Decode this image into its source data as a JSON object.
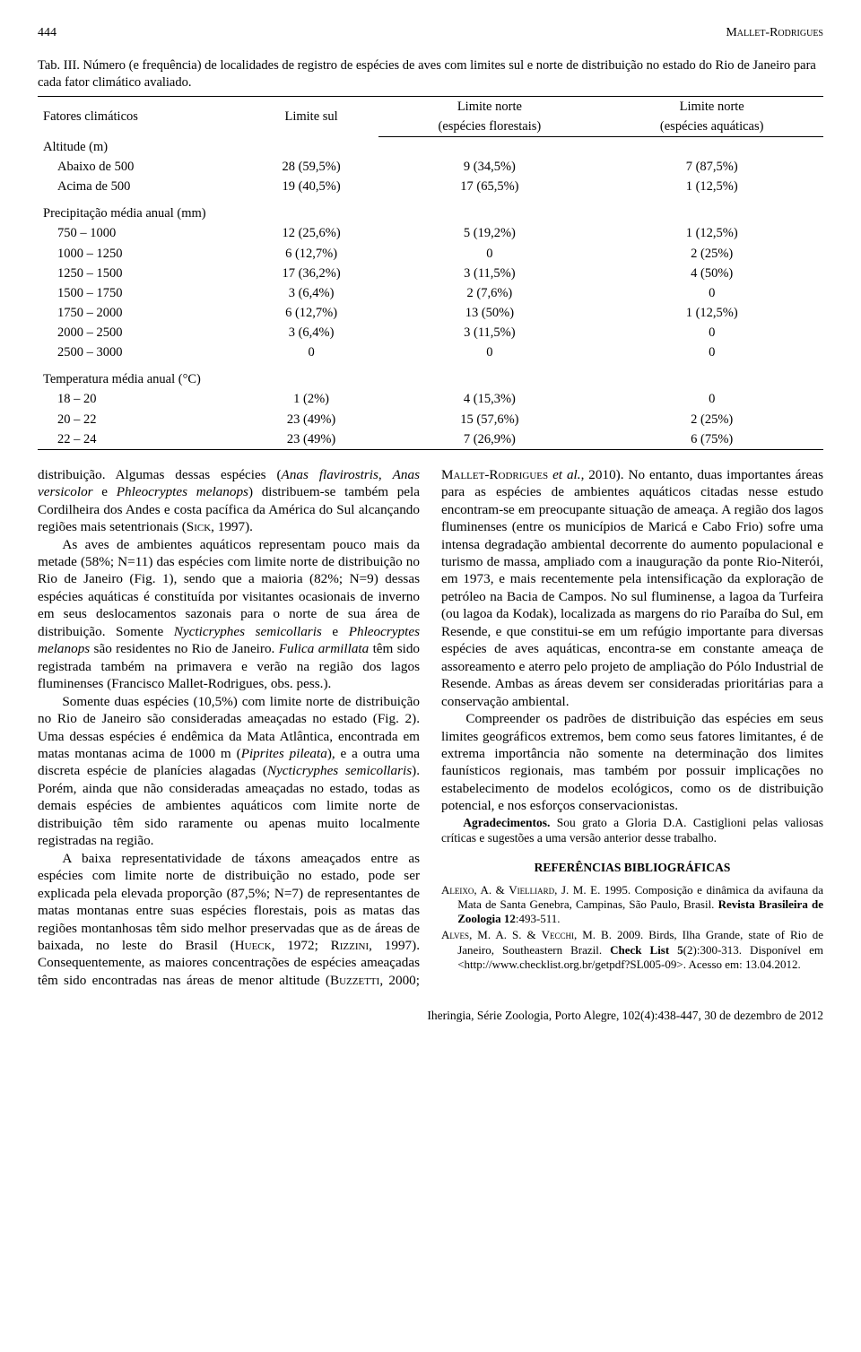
{
  "header": {
    "page": "444",
    "author": "Mallet-Rodrigues"
  },
  "table": {
    "caption": "Tab. III. Número (e frequência) de localidades de registro de espécies de aves com limites sul e norte de distribuição no estado do Rio de Janeiro para cada fator climático avaliado.",
    "col1": "Fatores climáticos",
    "col2": "Limite sul",
    "col3a": "Limite norte",
    "col3b": "(espécies florestais)",
    "col4a": "Limite norte",
    "col4b": "(espécies aquáticas)",
    "s1": "Altitude (m)",
    "r1": {
      "a": "Abaixo de 500",
      "b": "28 (59,5%)",
      "c": "9 (34,5%)",
      "d": "7 (87,5%)"
    },
    "r2": {
      "a": "Acima de 500",
      "b": "19 (40,5%)",
      "c": "17 (65,5%)",
      "d": "1 (12,5%)"
    },
    "s2": "Precipitação média anual (mm)",
    "r3": {
      "a": "750 – 1000",
      "b": "12 (25,6%)",
      "c": "5 (19,2%)",
      "d": "1 (12,5%)"
    },
    "r4": {
      "a": "1000 – 1250",
      "b": "6 (12,7%)",
      "c": "0",
      "d": "2 (25%)"
    },
    "r5": {
      "a": "1250 – 1500",
      "b": "17 (36,2%)",
      "c": "3 (11,5%)",
      "d": "4 (50%)"
    },
    "r6": {
      "a": "1500 – 1750",
      "b": "3 (6,4%)",
      "c": "2 (7,6%)",
      "d": "0"
    },
    "r7": {
      "a": "1750 – 2000",
      "b": "6 (12,7%)",
      "c": "13 (50%)",
      "d": "1 (12,5%)"
    },
    "r8": {
      "a": "2000 – 2500",
      "b": "3 (6,4%)",
      "c": "3 (11,5%)",
      "d": "0"
    },
    "r9": {
      "a": "2500 – 3000",
      "b": "0",
      "c": "0",
      "d": "0"
    },
    "s3": "Temperatura média anual (°C)",
    "r10": {
      "a": "18 – 20",
      "b": "1 (2%)",
      "c": "4 (15,3%)",
      "d": "0"
    },
    "r11": {
      "a": "20 – 22",
      "b": "23 (49%)",
      "c": "15 (57,6%)",
      "d": "2 (25%)"
    },
    "r12": {
      "a": "22 – 24",
      "b": "23 (49%)",
      "c": "7 (26,9%)",
      "d": "6 (75%)"
    }
  },
  "body": {
    "p1a": "distribuição. Algumas dessas espécies (",
    "p1b": "Anas flavirostris",
    "p1c": ", ",
    "p1d": "Anas versicolor",
    "p1e": " e ",
    "p1f": "Phleocryptes melanops",
    "p1g": ") distribuem-se também pela Cordilheira dos Andes e costa pacífica da América do Sul alcançando regiões mais setentrionais (",
    "p1h": "Sick",
    "p1i": ", 1997).",
    "p2a": "As aves de ambientes aquáticos representam pouco mais da metade (58%; N=11) das espécies com limite norte de distribuição no Rio de Janeiro (Fig. 1), sendo que a maioria (82%; N=9) dessas espécies aquáticas é constituída por visitantes ocasionais de inverno em seus deslocamentos sazonais para o norte de sua área de distribuição. Somente ",
    "p2b": "Nycticryphes semicollaris",
    "p2c": " e ",
    "p2d": "Phleocryptes melanops",
    "p2e": " são residentes no Rio de Janeiro. ",
    "p2f": "Fulica armillata",
    "p2g": " têm sido registrada também na primavera e verão na região dos lagos fluminenses (Francisco Mallet-Rodrigues, obs. pess.).",
    "p3a": "Somente duas espécies (10,5%) com limite norte de distribuição no Rio de Janeiro são consideradas ameaçadas no estado (Fig. 2). Uma dessas espécies é endêmica da Mata Atlântica, encontrada em matas montanas acima de 1000 m (",
    "p3b": "Piprites pileata",
    "p3c": "), e a outra uma discreta espécie de planícies alagadas (",
    "p3d": "Nycticryphes semicollaris",
    "p3e": "). Porém, ainda que não consideradas ameaçadas no estado, todas as demais espécies de ambientes aquáticos com limite norte de distribuição têm sido raramente ou apenas muito localmente registradas na região.",
    "p4a": "A baixa representatividade de táxons ameaçados entre as espécies com limite norte de distribuição no estado, pode ser explicada pela elevada proporção (87,5%; N=7) de representantes de matas montanas entre suas espécies florestais, pois as matas das regiões montanhosas têm sido melhor preservadas que as de áreas de baixada, no leste do Brasil (",
    "p4b": "Hueck",
    "p4c": ", 1972; ",
    "p4d": "Rizzini",
    "p4e": ", 1997). Consequentemente, as maiores concentrações de espécies ameaçadas ",
    "p5a": "têm sido encontradas nas áreas de menor altitude (",
    "p5b": "Buzzetti",
    "p5c": ", 2000; ",
    "p5d": "Mallet-Rodrigues",
    "p5e": " ",
    "p5f": "et al.",
    "p5g": ", 2010). No entanto, duas importantes áreas para as espécies de ambientes aquáticos citadas nesse estudo encontram-se em preocupante situação de ameaça. A região dos lagos fluminenses (entre os municípios de Maricá e Cabo Frio) sofre uma intensa degradação ambiental decorrente do aumento populacional e turismo de massa, ampliado com a inauguração da ponte Rio-Niterói, em 1973, e mais recentemente pela intensificação da exploração de petróleo na Bacia de Campos. No sul fluminense, a lagoa da Turfeira (ou lagoa da Kodak), localizada as margens do rio Paraíba do Sul, em Resende, e que constitui-se em um refúgio importante para diversas espécies de aves aquáticas, encontra-se em constante ameaça de assoreamento e aterro pelo projeto de ampliação do Pólo Industrial de Resende. Ambas as áreas devem ser consideradas prioritárias para a conservação ambiental.",
    "p6": "Compreender os padrões de distribuição das espécies em seus limites geográficos extremos, bem como seus fatores limitantes, é de extrema importância não somente na determinação dos limites faunísticos regionais, mas também por possuir implicações no estabelecimento de modelos ecológicos, como os de distribuição potencial, e nos esforços conservacionistas."
  },
  "ack": {
    "label": "Agradecimentos.",
    "text": " Sou grato a Gloria D.A. Castiglioni pelas valiosas críticas e sugestões a uma versão anterior desse trabalho."
  },
  "refs": {
    "head": "REFERÊNCIAS BIBLIOGRÁFICAS",
    "r1a": "Aleixo",
    "r1b": ", A. & ",
    "r1c": "Vielliard",
    "r1d": ", J. M. E. 1995. Composição e dinâmica da avifauna da Mata de Santa Genebra, Campinas, São Paulo, Brasil. ",
    "r1e": "Revista Brasileira de Zoologia 12",
    "r1f": ":493-511.",
    "r2a": "Alves",
    "r2b": ", M. A. S. & ",
    "r2c": "Vecchi",
    "r2d": ", M. B. 2009. Birds, Ilha Grande, state of Rio de Janeiro, Southeastern Brazil. ",
    "r2e": "Check List 5",
    "r2f": "(2):300-313. Disponível em <http://www.checklist.org.br/getpdf?SL005-09>. Acesso em: 13.04.2012."
  },
  "footer": "Iheringia, Série Zoologia, Porto Alegre, 102(4):438-447, 30 de dezembro de 2012"
}
